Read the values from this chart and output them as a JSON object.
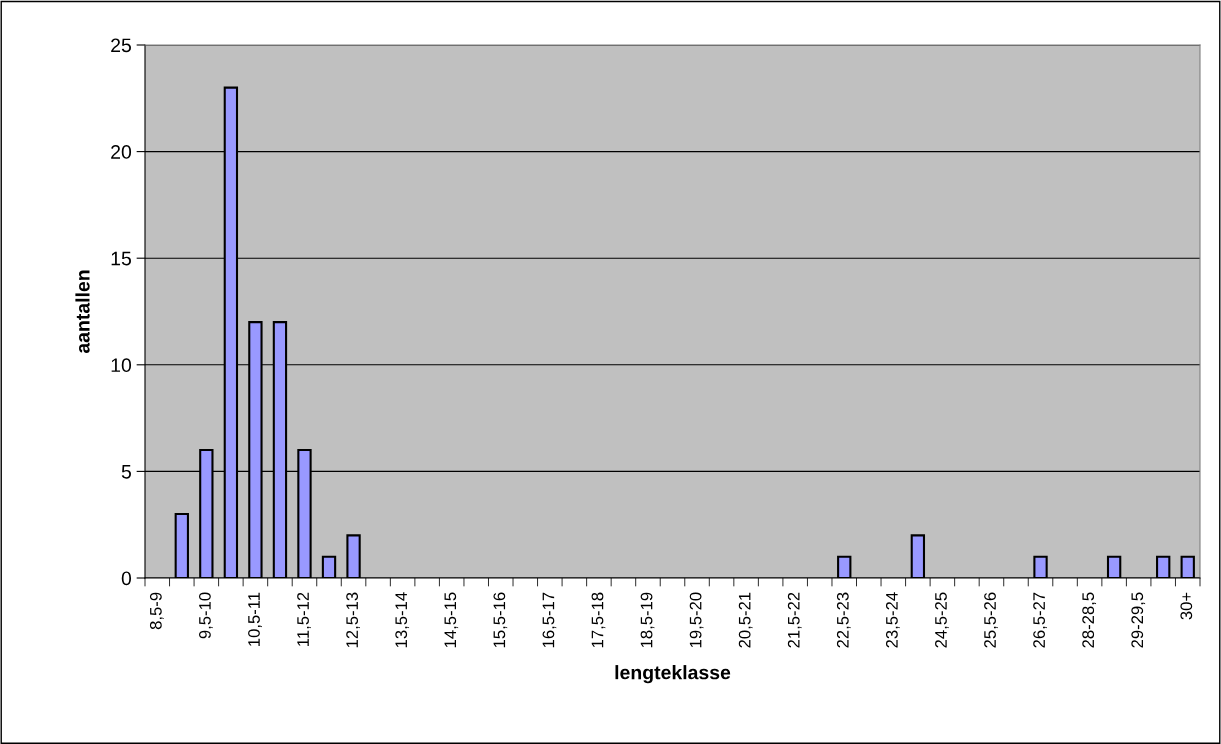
{
  "chart_data": {
    "type": "bar",
    "xlabel": "lengteklasse",
    "ylabel": "aantallen",
    "categories": [
      "8,5-9",
      null,
      "9,5-10",
      null,
      "10,5-11",
      null,
      "11,5-12",
      null,
      "12,5-13",
      null,
      "13,5-14",
      null,
      "14,5-15",
      null,
      "15,5-16",
      null,
      "16,5-17",
      null,
      "17,5-18",
      null,
      "18,5-19",
      null,
      "19,5-20",
      null,
      "20,5-21",
      null,
      "21,5-22",
      null,
      "22,5-23",
      null,
      "23,5-24",
      null,
      "24,5-25",
      null,
      "25,5-26",
      null,
      "26,5-27",
      null,
      "28-28,5",
      null,
      "29-29,5",
      null,
      "30+"
    ],
    "values": [
      null,
      3,
      6,
      23,
      12,
      12,
      6,
      1,
      2,
      null,
      null,
      null,
      null,
      null,
      null,
      null,
      null,
      null,
      null,
      null,
      null,
      null,
      null,
      null,
      null,
      null,
      null,
      null,
      1,
      null,
      null,
      2,
      null,
      null,
      null,
      null,
      1,
      null,
      null,
      1,
      null,
      1,
      1
    ],
    "color": "#9999ff",
    "ylim": [
      0,
      25
    ],
    "yticks": [
      0,
      5,
      10,
      15,
      20,
      25
    ],
    "grid": "y"
  }
}
